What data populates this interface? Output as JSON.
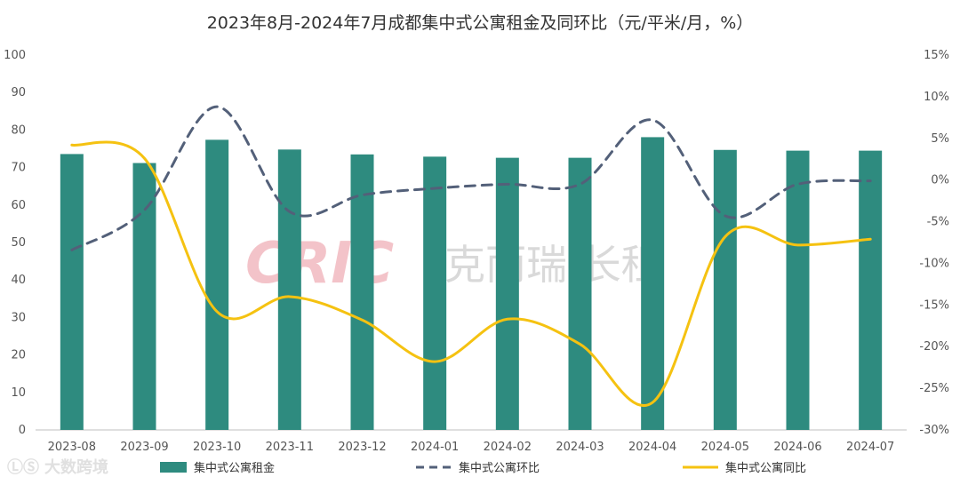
{
  "chart_data": {
    "type": "bar+line",
    "title": "2023年8月-2024年7月成都集中式公寓租金及同环比（元/平米/月，%）",
    "categories": [
      "2023-08",
      "2023-09",
      "2023-10",
      "2023-11",
      "2023-12",
      "2024-01",
      "2024-02",
      "2024-03",
      "2024-04",
      "2024-05",
      "2024-06",
      "2024-07"
    ],
    "left_axis": {
      "ylim": [
        0,
        100
      ],
      "ticks": [
        "0",
        "10",
        "20",
        "30",
        "40",
        "50",
        "60",
        "70",
        "80",
        "90",
        "100"
      ]
    },
    "right_axis": {
      "ylim": [
        -30,
        15
      ],
      "unit": "%",
      "ticks": [
        "-30%",
        "-25%",
        "-20%",
        "-15%",
        "-10%",
        "-5%",
        "0%",
        "5%",
        "10%",
        "15%"
      ]
    },
    "series": [
      {
        "name": "集中式公寓租金",
        "kind": "bar",
        "axis": "left",
        "color": "#2e8b7f",
        "values": [
          73.6,
          71.2,
          77.4,
          74.8,
          73.5,
          72.9,
          72.6,
          72.6,
          78.1,
          74.7,
          74.5,
          74.5
        ]
      },
      {
        "name": "集中式公寓环比",
        "kind": "line",
        "style": "dashed",
        "axis": "right",
        "color": "#536079",
        "values": [
          -8.4,
          -3.6,
          8.8,
          -3.8,
          -1.8,
          -1.0,
          -0.5,
          -0.5,
          7.2,
          -4.3,
          -0.5,
          -0.1
        ]
      },
      {
        "name": "集中式公寓同比",
        "kind": "line",
        "style": "solid",
        "axis": "right",
        "color": "#f5c211",
        "values": [
          4.2,
          2.6,
          -15.8,
          -14.0,
          -16.8,
          -21.8,
          -16.7,
          -19.7,
          -26.7,
          -6.8,
          -7.8,
          -7.1
        ]
      }
    ],
    "grid": false,
    "legend_position": "bottom"
  },
  "watermark": {
    "latin": "CRIC",
    "cjk": "克而瑞·长租"
  },
  "source_mark": {
    "text": "大数跨境"
  }
}
